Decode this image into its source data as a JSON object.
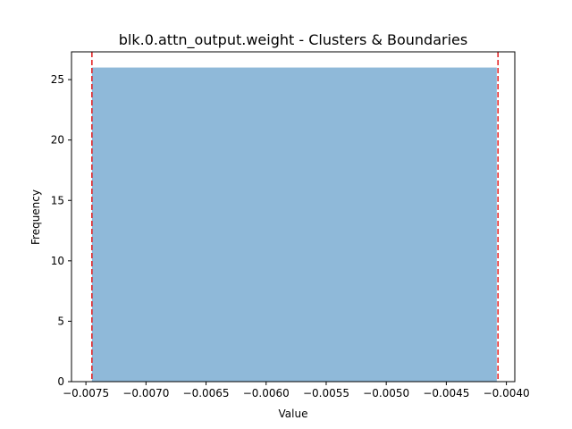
{
  "chart_data": {
    "type": "bar",
    "title": "blk.0.attn_output.weight - Clusters & Boundaries",
    "xlabel": "Value",
    "ylabel": "Frequency",
    "xlim": [
      -0.00762,
      -0.00393
    ],
    "ylim": [
      0,
      27.3
    ],
    "xticks": [
      -0.0075,
      -0.007,
      -0.0065,
      -0.006,
      -0.0055,
      -0.005,
      -0.0045,
      -0.004
    ],
    "xtick_labels": [
      "−0.0075",
      "−0.0070",
      "−0.0065",
      "−0.0060",
      "−0.0055",
      "−0.0050",
      "−0.0045",
      "−0.0040"
    ],
    "yticks": [
      0,
      5,
      10,
      15,
      20,
      25
    ],
    "ytick_labels": [
      "0",
      "5",
      "10",
      "15",
      "20",
      "25"
    ],
    "bars": [
      {
        "x0": -0.00745,
        "x1": -0.00408,
        "value": 26
      }
    ],
    "boundaries": [
      -0.00745,
      -0.00407
    ],
    "grid": false,
    "colors": {
      "bar": "#8fb9d9",
      "boundary": "#e31a1c",
      "axes": "#000000"
    }
  }
}
